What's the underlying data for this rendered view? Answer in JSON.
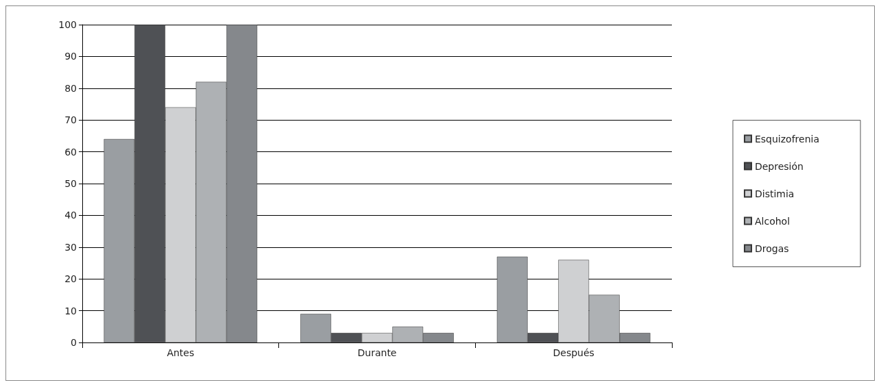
{
  "chart_data": {
    "type": "bar",
    "categories": [
      "Antes",
      "Durante",
      "Después"
    ],
    "series": [
      {
        "name": "Esquizofrenia",
        "color": "#9a9ea2",
        "values": [
          64,
          9,
          27
        ]
      },
      {
        "name": "Depresión",
        "color": "#4f5155",
        "values": [
          100,
          3,
          3
        ]
      },
      {
        "name": "Distimia",
        "color": "#cfd0d2",
        "values": [
          74,
          3,
          26
        ]
      },
      {
        "name": "Alcohol",
        "color": "#aeb1b4",
        "values": [
          82,
          5,
          15
        ]
      },
      {
        "name": "Drogas",
        "color": "#85888c",
        "values": [
          100,
          3,
          3
        ]
      }
    ],
    "ylim": [
      0,
      100
    ],
    "yticks": [
      0,
      10,
      20,
      30,
      40,
      50,
      60,
      70,
      80,
      90,
      100
    ],
    "grid": "y",
    "legend": "right"
  }
}
